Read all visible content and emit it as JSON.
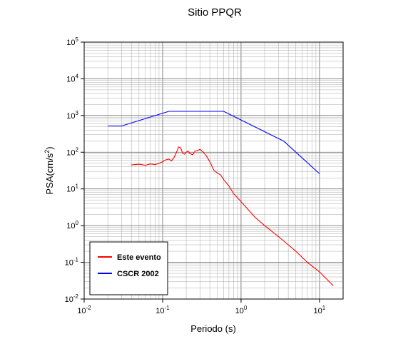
{
  "chart_data": {
    "type": "line",
    "title": "Sitio PPQR",
    "xlabel": "Periodo (s)",
    "ylabel_main": "PSA(cm/s",
    "ylabel_exp": "2",
    "ylabel_close": ")",
    "x_scale": "log",
    "y_scale": "log",
    "xlim": [
      0.01,
      20
    ],
    "ylim": [
      0.01,
      100000
    ],
    "grid": true,
    "legend_position": "bottom-left",
    "x_ticks": [
      {
        "value": 0.01,
        "base": "10",
        "exp": "-2"
      },
      {
        "value": 0.1,
        "base": "10",
        "exp": "-1"
      },
      {
        "value": 1,
        "base": "10",
        "exp": "0"
      },
      {
        "value": 10,
        "base": "10",
        "exp": "1"
      }
    ],
    "y_ticks": [
      {
        "value": 0.01,
        "base": "10",
        "exp": "-2"
      },
      {
        "value": 0.1,
        "base": "10",
        "exp": "-1"
      },
      {
        "value": 1,
        "base": "10",
        "exp": "0"
      },
      {
        "value": 10,
        "base": "10",
        "exp": "1"
      },
      {
        "value": 100,
        "base": "10",
        "exp": "2"
      },
      {
        "value": 1000,
        "base": "10",
        "exp": "3"
      },
      {
        "value": 10000,
        "base": "10",
        "exp": "4"
      },
      {
        "value": 100000,
        "base": "10",
        "exp": "5"
      }
    ],
    "series": [
      {
        "name": "Este evento",
        "color": "#ff0000",
        "x": [
          0.04,
          0.05,
          0.06,
          0.07,
          0.08,
          0.09,
          0.1,
          0.11,
          0.12,
          0.13,
          0.14,
          0.15,
          0.16,
          0.17,
          0.18,
          0.19,
          0.2,
          0.21,
          0.22,
          0.24,
          0.26,
          0.28,
          0.3,
          0.33,
          0.36,
          0.4,
          0.45,
          0.5,
          0.55,
          0.6,
          0.7,
          0.8,
          1,
          1.5,
          2,
          3,
          4,
          5,
          7,
          10,
          12,
          15
        ],
        "y": [
          45,
          47,
          44,
          48,
          46,
          50,
          55,
          62,
          65,
          58,
          72,
          98,
          140,
          130,
          95,
          88,
          100,
          108,
          95,
          85,
          108,
          112,
          120,
          100,
          80,
          55,
          32,
          27,
          24,
          18,
          12,
          7.5,
          4.5,
          1.7,
          1,
          0.5,
          0.3,
          0.2,
          0.1,
          0.055,
          0.037,
          0.023
        ]
      },
      {
        "name": "CSCR 2002",
        "color": "#0000ff",
        "x": [
          0.02,
          0.03,
          0.12,
          0.6,
          3.5,
          10
        ],
        "y": [
          520,
          520,
          1300,
          1300,
          200,
          26
        ]
      }
    ]
  }
}
